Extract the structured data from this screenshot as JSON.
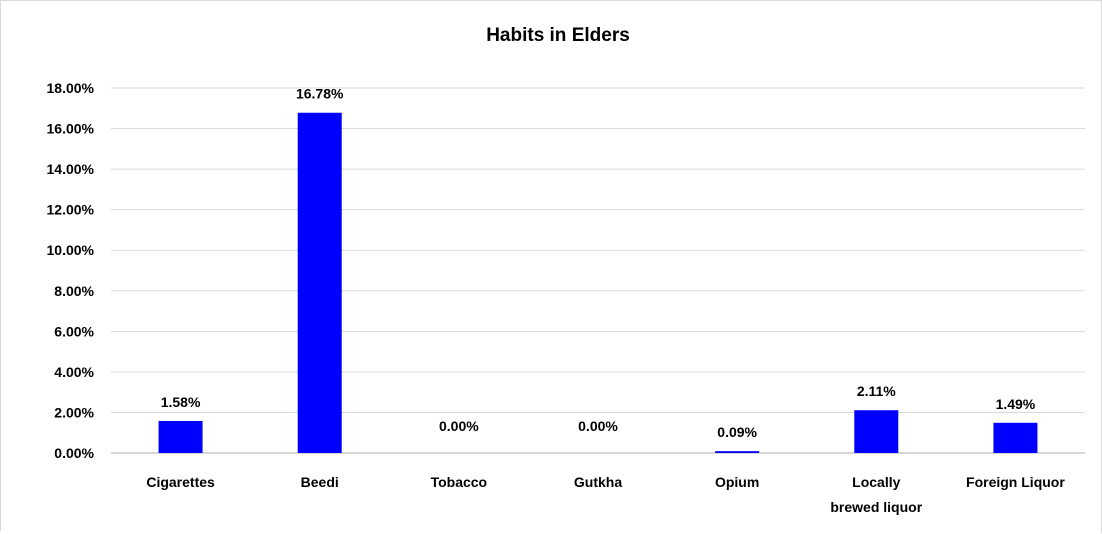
{
  "chart_data": {
    "type": "bar",
    "title": "Habits in Elders",
    "xlabel": "",
    "ylabel": "",
    "categories": [
      [
        "Cigarettes"
      ],
      [
        "Beedi"
      ],
      [
        "Tobacco"
      ],
      [
        "Gutkha"
      ],
      [
        "Opium"
      ],
      [
        "Locally",
        "brewed liquor"
      ],
      [
        "Foreign Liquor"
      ]
    ],
    "values": [
      1.58,
      16.78,
      0.0,
      0.0,
      0.09,
      2.11,
      1.49
    ],
    "data_labels": [
      "1.58%",
      "16.78%",
      "0.00%",
      "0.00%",
      "0.09%",
      "2.11%",
      "1.49%"
    ],
    "y_ticks": [
      "0.00%",
      "2.00%",
      "4.00%",
      "6.00%",
      "8.00%",
      "10.00%",
      "12.00%",
      "14.00%",
      "16.00%",
      "18.00%"
    ],
    "ylim": [
      0,
      18
    ],
    "grid": true,
    "legend": "none",
    "colors": {
      "bar": "#0000ff",
      "grid": "#d9d9d9",
      "axis": "#bfbfbf"
    }
  }
}
